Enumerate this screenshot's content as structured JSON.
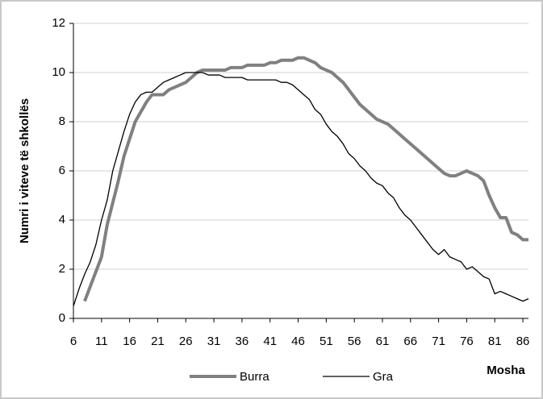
{
  "chart_data": {
    "type": "line",
    "xlabel": "Mosha",
    "ylabel": "Numri i viteve të shkollës",
    "x": [
      6,
      7,
      8,
      9,
      10,
      11,
      12,
      13,
      14,
      15,
      16,
      17,
      18,
      19,
      20,
      21,
      22,
      23,
      24,
      25,
      26,
      27,
      28,
      29,
      30,
      31,
      32,
      33,
      34,
      35,
      36,
      37,
      38,
      39,
      40,
      41,
      42,
      43,
      44,
      45,
      46,
      47,
      48,
      49,
      50,
      51,
      52,
      53,
      54,
      55,
      56,
      57,
      58,
      59,
      60,
      61,
      62,
      63,
      64,
      65,
      66,
      67,
      68,
      69,
      70,
      71,
      72,
      73,
      74,
      75,
      76,
      77,
      78,
      79,
      80,
      81,
      82,
      83,
      84,
      85,
      86,
      87
    ],
    "series": [
      {
        "name": "Burra",
        "color": "#808080",
        "width": 4,
        "values": [
          null,
          null,
          0.7,
          1.3,
          1.9,
          2.5,
          3.8,
          4.7,
          5.6,
          6.6,
          7.3,
          8.0,
          8.4,
          8.8,
          9.1,
          9.1,
          9.1,
          9.3,
          9.4,
          9.5,
          9.6,
          9.8,
          10.0,
          10.1,
          10.1,
          10.1,
          10.1,
          10.1,
          10.2,
          10.2,
          10.2,
          10.3,
          10.3,
          10.3,
          10.3,
          10.4,
          10.4,
          10.5,
          10.5,
          10.5,
          10.6,
          10.6,
          10.5,
          10.4,
          10.2,
          10.1,
          10.0,
          9.8,
          9.6,
          9.3,
          9.0,
          8.7,
          8.5,
          8.3,
          8.1,
          8.0,
          7.9,
          7.7,
          7.5,
          7.3,
          7.1,
          6.9,
          6.7,
          6.5,
          6.3,
          6.1,
          5.9,
          5.8,
          5.8,
          5.9,
          6.0,
          5.9,
          5.8,
          5.6,
          5.0,
          4.5,
          4.1,
          4.1,
          3.5,
          3.4,
          3.2,
          3.2
        ]
      },
      {
        "name": "Gra",
        "color": "#000000",
        "width": 1.3,
        "values": [
          0.5,
          1.2,
          1.8,
          2.3,
          3.0,
          4.0,
          4.8,
          6.0,
          6.8,
          7.6,
          8.3,
          8.8,
          9.1,
          9.2,
          9.2,
          9.4,
          9.6,
          9.7,
          9.8,
          9.9,
          10.0,
          10.0,
          10.0,
          10.0,
          9.9,
          9.9,
          9.9,
          9.8,
          9.8,
          9.8,
          9.8,
          9.7,
          9.7,
          9.7,
          9.7,
          9.7,
          9.7,
          9.6,
          9.6,
          9.5,
          9.3,
          9.1,
          8.9,
          8.5,
          8.3,
          7.9,
          7.6,
          7.4,
          7.1,
          6.7,
          6.5,
          6.2,
          6.0,
          5.7,
          5.5,
          5.4,
          5.1,
          4.9,
          4.5,
          4.2,
          4.0,
          3.7,
          3.4,
          3.1,
          2.8,
          2.6,
          2.8,
          2.5,
          2.4,
          2.3,
          2.0,
          2.1,
          1.9,
          1.7,
          1.6,
          1.0,
          1.1,
          1.0,
          0.9,
          0.8,
          0.7,
          0.8
        ]
      }
    ],
    "xlim": [
      6,
      87
    ],
    "xticks": [
      6,
      11,
      16,
      21,
      26,
      31,
      36,
      41,
      46,
      51,
      56,
      61,
      66,
      71,
      76,
      81,
      86
    ],
    "ylim": [
      0,
      12
    ],
    "yticks": [
      0,
      2,
      4,
      6,
      8,
      10,
      12
    ],
    "grid": true
  }
}
